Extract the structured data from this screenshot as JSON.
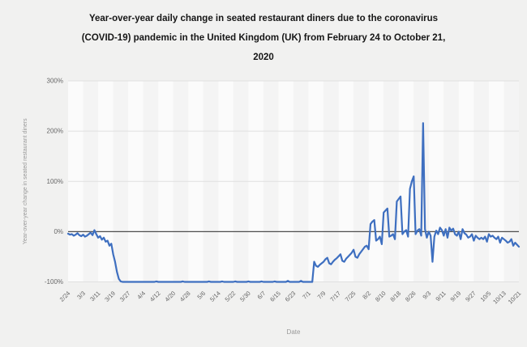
{
  "chart": {
    "title_lines": [
      "Year-over-year daily change in seated restaurant diners due to the coronavirus",
      "(COVID-19) pandemic in the United Kingdom (UK) from February 24 to October 21,",
      "2020"
    ]
  },
  "chart_data": {
    "type": "line",
    "title": "Year-over-year daily change in seated restaurant diners due to the coronavirus (COVID-19) pandemic in the United Kingdom (UK) from February 24 to October 21, 2020",
    "xlabel": "Date",
    "ylabel": "Year-over-year change in seated restaurant diners",
    "x_start": "2/24/2020",
    "x_end": "10/21/2020",
    "frequency": "daily",
    "ylim": [
      -100,
      300
    ],
    "grid": true,
    "legend": false,
    "y_tick_values": [
      300,
      200,
      100,
      0,
      -100
    ],
    "y_tick_labels": [
      "300%",
      "200%",
      "100%",
      "0%",
      "-100%"
    ],
    "x_tick_labels": [
      "2/24",
      "3/3",
      "3/11",
      "3/19",
      "3/27",
      "4/4",
      "4/12",
      "4/20",
      "4/28",
      "5/6",
      "5/14",
      "5/22",
      "5/30",
      "6/7",
      "6/15",
      "6/23",
      "7/1",
      "7/9",
      "7/17",
      "7/25",
      "8/2",
      "8/10",
      "8/18",
      "8/26",
      "9/3",
      "9/11",
      "9/19",
      "9/27",
      "10/5",
      "10/13",
      "10/21"
    ],
    "x_tick_every_n_days": 8,
    "series": [
      {
        "name": "Year-over-year change in seated restaurant diners (%)",
        "values": [
          -4,
          -6,
          -5,
          -8,
          -6,
          -3,
          -7,
          -9,
          -6,
          -10,
          -8,
          -5,
          -2,
          -7,
          3,
          -5,
          -12,
          -9,
          -16,
          -12,
          -20,
          -18,
          -28,
          -24,
          -45,
          -60,
          -80,
          -94,
          -99,
          -100,
          -100,
          -100,
          -100,
          -100,
          -100,
          -100,
          -100,
          -100,
          -100,
          -100,
          -100,
          -100,
          -100,
          -100,
          -100,
          -100,
          -100,
          -99,
          -100,
          -100,
          -100,
          -100,
          -100,
          -100,
          -100,
          -100,
          -100,
          -100,
          -100,
          -100,
          -100,
          -99,
          -100,
          -100,
          -100,
          -100,
          -100,
          -100,
          -100,
          -100,
          -100,
          -100,
          -100,
          -100,
          -100,
          -99,
          -100,
          -100,
          -100,
          -100,
          -100,
          -100,
          -99,
          -100,
          -100,
          -100,
          -100,
          -100,
          -100,
          -99,
          -100,
          -100,
          -100,
          -100,
          -100,
          -100,
          -99,
          -100,
          -100,
          -100,
          -100,
          -100,
          -100,
          -99,
          -100,
          -100,
          -100,
          -100,
          -100,
          -100,
          -99,
          -100,
          -100,
          -100,
          -100,
          -100,
          -100,
          -98,
          -100,
          -100,
          -100,
          -100,
          -100,
          -100,
          -98,
          -100,
          -100,
          -100,
          -100,
          -100,
          -100,
          -60,
          -68,
          -70,
          -66,
          -63,
          -60,
          -55,
          -52,
          -63,
          -65,
          -60,
          -56,
          -53,
          -49,
          -45,
          -58,
          -60,
          -54,
          -50,
          -46,
          -42,
          -36,
          -50,
          -52,
          -45,
          -40,
          -35,
          -30,
          -28,
          -35,
          15,
          20,
          23,
          -18,
          -15,
          -10,
          -25,
          38,
          42,
          46,
          -10,
          -8,
          -5,
          -15,
          60,
          65,
          70,
          -5,
          0,
          3,
          -10,
          85,
          100,
          110,
          -5,
          2,
          5,
          -8,
          216,
          5,
          -12,
          0,
          -8,
          -60,
          -10,
          2,
          -5,
          8,
          3,
          -8,
          5,
          -12,
          8,
          2,
          6,
          -5,
          -8,
          0,
          -15,
          5,
          -3,
          -6,
          -12,
          -10,
          -5,
          -18,
          -8,
          -12,
          -15,
          -12,
          -15,
          -10,
          -20,
          -5,
          -10,
          -8,
          -12,
          -15,
          -10,
          -22,
          -12,
          -15,
          -18,
          -22,
          -20,
          -15,
          -28,
          -22,
          -26,
          -30
        ]
      }
    ],
    "colors": {
      "line": "#3e6fc0",
      "zero_line": "#4d4d4d",
      "gridline": "#e0e0e0",
      "band_light": "#fbfbfb",
      "band_dark": "#f4f4f4",
      "tick_text": "#666666",
      "axis_title": "#999999",
      "title_text": "#161616",
      "page_bg": "#f1f1f0"
    }
  }
}
